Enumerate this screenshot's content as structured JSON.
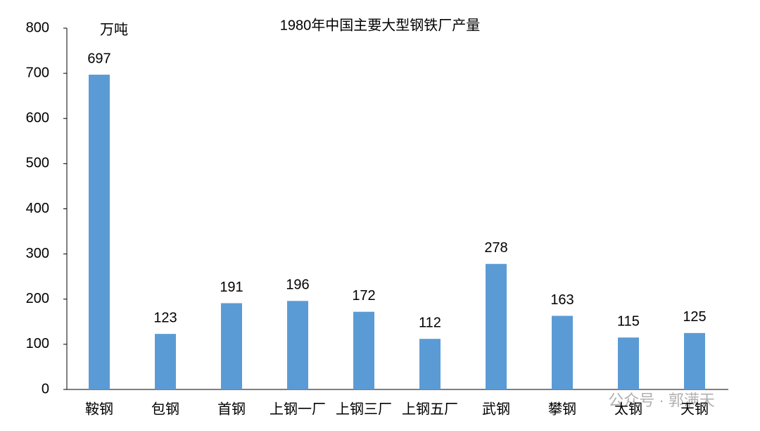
{
  "chart_data": {
    "type": "bar",
    "title": "1980年中国主要大型钢铁厂产量",
    "y_unit": "万吨",
    "categories": [
      "鞍钢",
      "包钢",
      "首钢",
      "上钢一厂",
      "上钢三厂",
      "上钢五厂",
      "武钢",
      "攀钢",
      "太钢",
      "天钢"
    ],
    "values": [
      697,
      123,
      191,
      196,
      172,
      112,
      278,
      163,
      115,
      125
    ],
    "color": "#5b9bd5",
    "ylim": [
      0,
      800
    ],
    "yticks": [
      0,
      100,
      200,
      300,
      400,
      500,
      600,
      700,
      800
    ],
    "grid": false,
    "watermark": "公众号 · 郭满天"
  }
}
